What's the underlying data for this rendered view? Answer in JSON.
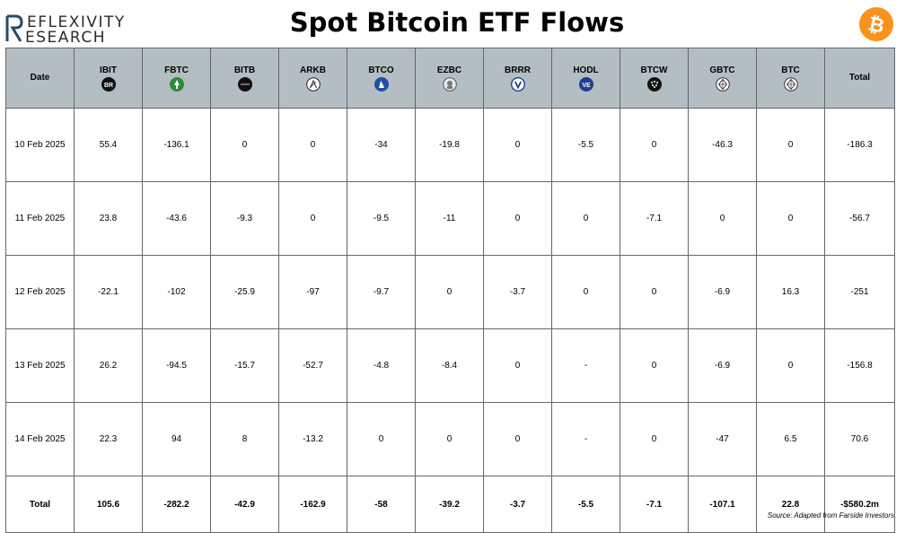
{
  "brand": {
    "line1": "EFLEXIVITY",
    "line2": "ESEARCH"
  },
  "title": "Spot Bitcoin ETF Flows",
  "source": "Source: Adapted from Farside Investors",
  "colors": {
    "header_bg": "#b4bec2",
    "bitcoin_orange": "#f7931a",
    "fbtc_green": "#2e8b3a",
    "btco_blue": "#1f4fa8",
    "hodl_blue": "#1d3f8c"
  },
  "chart_data": {
    "type": "table",
    "columns": [
      {
        "label": "Date",
        "icon": null
      },
      {
        "label": "IBIT",
        "icon": "br-icon"
      },
      {
        "label": "FBTC",
        "icon": "fidelity-icon"
      },
      {
        "label": "BITB",
        "icon": "bitwise-icon"
      },
      {
        "label": "ARKB",
        "icon": "ark-icon"
      },
      {
        "label": "BTCO",
        "icon": "invesco-icon"
      },
      {
        "label": "EZBC",
        "icon": "franklin-icon"
      },
      {
        "label": "BRRR",
        "icon": "valkyrie-icon"
      },
      {
        "label": "HODL",
        "icon": "vaneck-icon"
      },
      {
        "label": "BTCW",
        "icon": "wisdomtree-icon"
      },
      {
        "label": "GBTC",
        "icon": "grayscale-icon"
      },
      {
        "label": "BTC",
        "icon": "grayscale-mini-icon"
      },
      {
        "label": "Total",
        "icon": null
      }
    ],
    "rows": [
      [
        "10 Feb 2025",
        "55.4",
        "-136.1",
        "0",
        "0",
        "-34",
        "-19.8",
        "0",
        "-5.5",
        "0",
        "-46.3",
        "0",
        "-186.3"
      ],
      [
        "11 Feb 2025",
        "23.8",
        "-43.6",
        "-9.3",
        "0",
        "-9.5",
        "-11",
        "0",
        "0",
        "-7.1",
        "0",
        "0",
        "-56.7"
      ],
      [
        "12 Feb 2025",
        "-22.1",
        "-102",
        "-25.9",
        "-97",
        "-9.7",
        "0",
        "-3.7",
        "0",
        "0",
        "-6.9",
        "16.3",
        "-251"
      ],
      [
        "13 Feb 2025",
        "26.2",
        "-94.5",
        "-15.7",
        "-52.7",
        "-4.8",
        "-8.4",
        "0",
        "-",
        "0",
        "-6.9",
        "0",
        "-156.8"
      ],
      [
        "14 Feb 2025",
        "22.3",
        "94",
        "8",
        "-13.2",
        "0",
        "0",
        "0",
        "-",
        "0",
        "-47",
        "6.5",
        "70.6"
      ]
    ],
    "total_row": [
      "Total",
      "105.6",
      "-282.2",
      "-42.9",
      "-162.9",
      "-58",
      "-39.2",
      "-3.7",
      "-5.5",
      "-7.1",
      "-107.1",
      "22.8",
      "-$580.2m"
    ]
  }
}
